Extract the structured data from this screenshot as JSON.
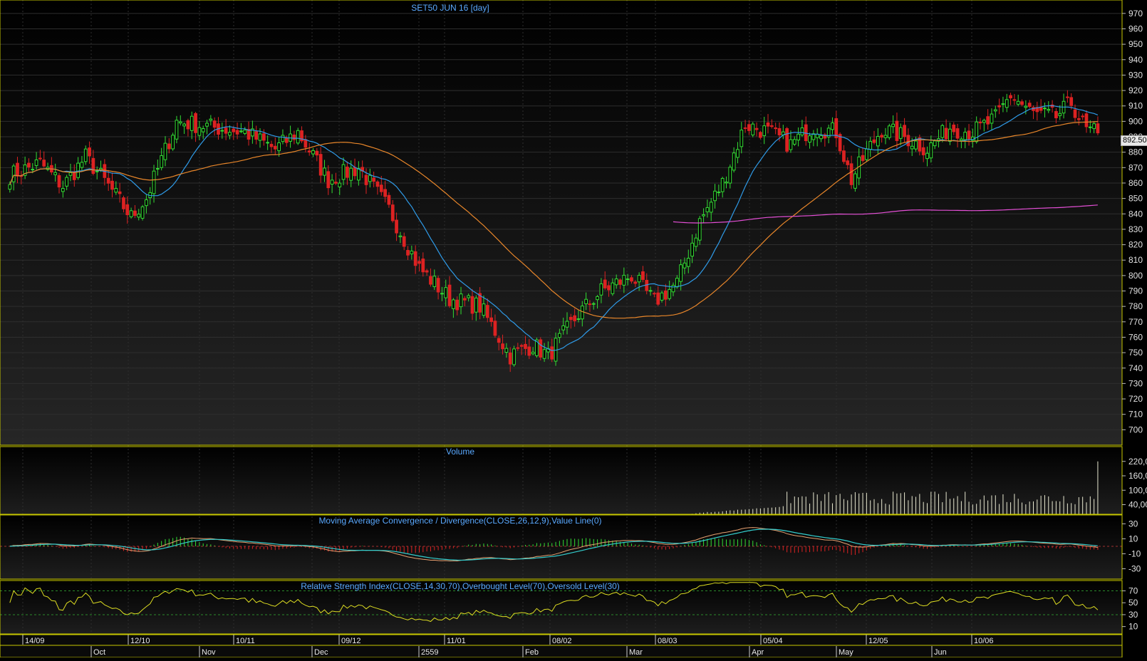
{
  "instrument_title": "SET50 JUN 16   [day]",
  "last_price_label": "892.50",
  "colors": {
    "background": "#000000",
    "frame": "#c8c800",
    "grid": "#2e2e2e",
    "bull": "#33dd33",
    "bear": "#dd2222",
    "ma_fast": "#2f9be8",
    "ma_mid": "#e8862a",
    "ma_slow": "#e44fd6",
    "title_text": "#5aa9ff",
    "volume": "#e8e8d0",
    "macd": "#e8a070",
    "macd_signal": "#33cccc",
    "rsi": "#dddd22",
    "rsi_levels": "#2a8a2a"
  },
  "x_axis": {
    "upper_labels": [
      "14/09",
      "12/10",
      "10/11",
      "09/12",
      "11/01",
      "08/02",
      "08/03",
      "05/04",
      "12/05",
      "10/06"
    ],
    "lower_labels": [
      "Oct",
      "Nov",
      "Dec",
      "2559",
      "Feb",
      "Mar",
      "Apr",
      "May",
      "Jun"
    ]
  },
  "chart_data": [
    {
      "type": "candlestick",
      "title": "SET50 JUN 16   [day]",
      "ylim": [
        690,
        975
      ],
      "y_ticks": [
        700,
        710,
        720,
        730,
        740,
        750,
        760,
        770,
        780,
        790,
        800,
        810,
        820,
        830,
        840,
        850,
        860,
        870,
        880,
        890,
        900,
        910,
        920,
        930,
        940,
        950,
        960,
        970
      ],
      "last_value": 892.5,
      "close_anchors": [
        [
          0,
          865
        ],
        [
          8,
          873
        ],
        [
          14,
          858
        ],
        [
          20,
          877
        ],
        [
          27,
          855
        ],
        [
          32,
          838
        ],
        [
          36,
          850
        ],
        [
          44,
          900
        ],
        [
          54,
          896
        ],
        [
          62,
          893
        ],
        [
          70,
          882
        ],
        [
          76,
          893
        ],
        [
          84,
          862
        ],
        [
          92,
          870
        ],
        [
          100,
          843
        ],
        [
          108,
          805
        ],
        [
          116,
          785
        ],
        [
          124,
          780
        ],
        [
          132,
          748
        ],
        [
          138,
          755
        ],
        [
          142,
          748
        ],
        [
          150,
          775
        ],
        [
          156,
          790
        ],
        [
          164,
          800
        ],
        [
          170,
          783
        ],
        [
          176,
          795
        ],
        [
          182,
          835
        ],
        [
          188,
          860
        ],
        [
          194,
          898
        ],
        [
          200,
          893
        ],
        [
          206,
          885
        ],
        [
          212,
          897
        ],
        [
          218,
          893
        ],
        [
          222,
          862
        ],
        [
          226,
          880
        ],
        [
          230,
          895
        ],
        [
          236,
          890
        ],
        [
          242,
          882
        ],
        [
          248,
          896
        ],
        [
          254,
          893
        ],
        [
          260,
          902
        ],
        [
          264,
          917
        ],
        [
          270,
          905
        ],
        [
          276,
          903
        ],
        [
          280,
          912
        ],
        [
          284,
          894
        ],
        [
          287,
          892.5
        ]
      ],
      "series": [
        {
          "name": "Fast moving average",
          "period": 15
        },
        {
          "name": "Medium moving average",
          "period": 50
        },
        {
          "name": "Slow moving average",
          "period": 200
        }
      ]
    },
    {
      "type": "bar",
      "title": "Volume",
      "y_ticks": [
        "40,00",
        "100,0",
        "160,0",
        "220,0"
      ],
      "ylim": [
        0,
        240000
      ],
      "note_last_bar_max": 220000
    },
    {
      "type": "line",
      "title": "Moving Average Convergence / Divergence(CLOSE,26,12,9),Value Line(0)",
      "ylim": [
        -40,
        38
      ],
      "y_ticks": [
        30,
        10,
        -10,
        -30
      ]
    },
    {
      "type": "line",
      "title": "Relative Strength Index(CLOSE,14,30,70),Overbought Level(70),Oversold Level(30)",
      "ylim": [
        0,
        85
      ],
      "y_ticks": [
        70,
        50,
        30,
        10
      ],
      "levels": [
        70,
        30
      ]
    }
  ]
}
